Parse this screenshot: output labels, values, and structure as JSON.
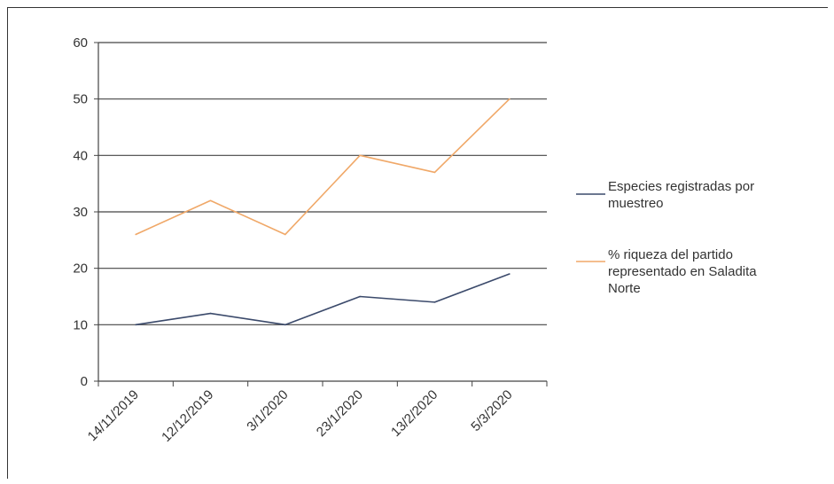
{
  "chart_data": {
    "type": "line",
    "categories": [
      "14/11/2019",
      "12/12/2019",
      "3/1/2020",
      "23/1/2020",
      "13/2/2020",
      "5/3/2020"
    ],
    "series": [
      {
        "name": "Especies registradas por muestreo",
        "values": [
          10,
          12,
          10,
          15,
          14,
          19
        ],
        "color": "#3b4a6b"
      },
      {
        "name": "% riqueza del partido representado en Saladita Norte",
        "values": [
          26,
          32,
          26,
          40,
          37,
          50
        ],
        "color": "#f0a868"
      }
    ],
    "ylim": [
      0,
      60
    ],
    "yticks": [
      0,
      10,
      20,
      30,
      40,
      50,
      60
    ],
    "grid": true,
    "legend_position": "right",
    "title": "",
    "xlabel": "",
    "ylabel": ""
  },
  "legend": {
    "series0_lines": [
      "Especies registradas por",
      "muestreo"
    ],
    "series1_lines": [
      "% riqueza del partido",
      "representado en Saladita",
      "Norte"
    ]
  },
  "colors": {
    "grid": "#444444",
    "axis": "#444444",
    "text": "#333333"
  }
}
